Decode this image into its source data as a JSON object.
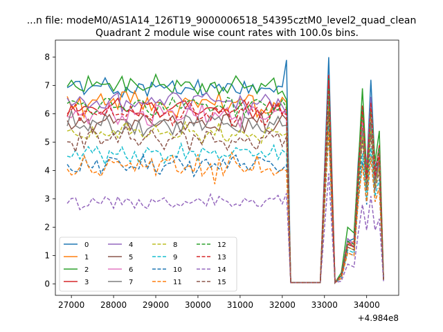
{
  "chart_data": {
    "type": "line",
    "suptitle": "...n file: modeM0/AS1A14_126T19_9000006518_54395cztM0_level2_quad_clean",
    "title": "Quadrant 2 module wise count rates with 100.0s bins.",
    "xlabel": "",
    "ylabel": "",
    "x_offset_label": "+4.984e8",
    "xlim": [
      26620,
      34760
    ],
    "ylim": [
      -0.4,
      8.6
    ],
    "xticks": [
      27000,
      28000,
      29000,
      30000,
      31000,
      32000,
      33000,
      34000
    ],
    "yticks": [
      0,
      1,
      2,
      3,
      4,
      5,
      6,
      7,
      8
    ],
    "legend_position": "lower-left",
    "legend_columns": 4,
    "break_x": [
      32100,
      32200,
      32900,
      33100,
      33250,
      33400,
      33550,
      33700,
      33800,
      33900,
      34000,
      34100,
      34200,
      34300,
      34400
    ],
    "series": [
      {
        "name": "0",
        "color": "#1f77b4",
        "dash": "solid",
        "base": 6.9,
        "amp": 0.3,
        "tail": [
          7.9,
          0.05,
          0.05,
          8.0,
          0.05,
          0.3,
          1.5,
          1.6,
          4.3,
          6.2,
          4.0,
          7.2,
          4.1,
          4.7,
          0.15
        ]
      },
      {
        "name": "1",
        "color": "#ff7f0e",
        "dash": "solid",
        "base": 6.4,
        "amp": 0.4,
        "tail": [
          6.4,
          0.05,
          0.05,
          7.2,
          0.05,
          0.3,
          1.4,
          1.5,
          3.5,
          6.0,
          3.6,
          6.1,
          3.8,
          4.6,
          0.15
        ]
      },
      {
        "name": "2",
        "color": "#2ca02c",
        "dash": "solid",
        "base": 7.0,
        "amp": 0.3,
        "tail": [
          6.5,
          0.05,
          0.05,
          7.3,
          0.05,
          0.4,
          2.0,
          1.8,
          4.1,
          6.9,
          3.9,
          6.5,
          4.3,
          5.4,
          0.15
        ]
      },
      {
        "name": "3",
        "color": "#d62728",
        "dash": "solid",
        "base": 6.2,
        "amp": 0.3,
        "tail": [
          6.2,
          0.05,
          0.05,
          7.1,
          0.05,
          0.3,
          1.5,
          1.3,
          4.0,
          6.0,
          3.7,
          6.3,
          3.9,
          4.9,
          0.15
        ]
      },
      {
        "name": "4",
        "color": "#9467bd",
        "dash": "solid",
        "base": 6.4,
        "amp": 0.35,
        "tail": [
          6.0,
          0.05,
          0.05,
          6.8,
          0.05,
          0.3,
          1.6,
          1.4,
          3.9,
          5.8,
          4.0,
          6.6,
          3.7,
          4.8,
          0.15
        ]
      },
      {
        "name": "5",
        "color": "#8c564b",
        "dash": "solid",
        "base": 5.7,
        "amp": 0.3,
        "tail": [
          5.8,
          0.05,
          0.05,
          6.6,
          0.05,
          0.3,
          1.4,
          1.3,
          3.6,
          5.5,
          3.4,
          5.7,
          3.6,
          4.4,
          0.15
        ]
      },
      {
        "name": "6",
        "color": "#e377c2",
        "dash": "solid",
        "base": 6.0,
        "amp": 0.35,
        "tail": [
          6.0,
          0.05,
          0.05,
          6.9,
          0.05,
          0.3,
          1.5,
          1.4,
          3.8,
          5.9,
          3.8,
          6.2,
          3.9,
          4.7,
          0.15
        ]
      },
      {
        "name": "7",
        "color": "#7f7f7f",
        "dash": "solid",
        "base": 5.6,
        "amp": 0.35,
        "tail": [
          5.6,
          0.05,
          0.05,
          6.5,
          0.05,
          0.3,
          1.4,
          1.3,
          3.5,
          5.4,
          3.4,
          5.6,
          3.5,
          4.3,
          0.15
        ]
      },
      {
        "name": "8",
        "color": "#bcbd22",
        "dash": "dashed",
        "base": 5.3,
        "amp": 0.3,
        "tail": [
          5.3,
          0.05,
          0.05,
          6.2,
          0.05,
          0.3,
          1.3,
          1.2,
          3.4,
          5.2,
          3.3,
          5.4,
          3.4,
          4.1,
          0.15
        ]
      },
      {
        "name": "9",
        "color": "#17becf",
        "dash": "dashed",
        "base": 4.6,
        "amp": 0.25,
        "tail": [
          4.6,
          0.05,
          0.05,
          5.6,
          0.05,
          0.2,
          1.2,
          1.1,
          3.1,
          4.6,
          3.0,
          4.8,
          3.1,
          3.7,
          0.15
        ]
      },
      {
        "name": "10",
        "color": "#1f77b4",
        "dash": "dashed",
        "base": 4.2,
        "amp": 0.3,
        "tail": [
          4.2,
          0.05,
          0.05,
          5.3,
          0.05,
          0.2,
          1.1,
          1.0,
          2.9,
          4.3,
          2.8,
          4.5,
          2.9,
          3.4,
          0.15
        ]
      },
      {
        "name": "11",
        "color": "#ff7f0e",
        "dash": "dashed",
        "base": 4.1,
        "amp": 0.4,
        "tail": [
          4.0,
          0.05,
          0.05,
          5.4,
          0.05,
          0.2,
          1.1,
          1.0,
          2.9,
          4.2,
          2.9,
          4.5,
          2.9,
          3.4,
          0.15
        ]
      },
      {
        "name": "12",
        "color": "#2ca02c",
        "dash": "dashed",
        "base": 6.3,
        "amp": 0.3,
        "tail": [
          6.2,
          0.05,
          0.05,
          7.0,
          0.05,
          0.3,
          1.5,
          1.4,
          3.9,
          6.1,
          3.8,
          6.2,
          3.9,
          4.8,
          0.15
        ]
      },
      {
        "name": "13",
        "color": "#d62728",
        "dash": "dashed",
        "base": 6.0,
        "amp": 0.3,
        "tail": [
          6.0,
          0.05,
          0.05,
          7.4,
          0.05,
          0.3,
          1.4,
          1.3,
          3.8,
          6.3,
          3.7,
          6.4,
          3.8,
          4.6,
          0.15
        ]
      },
      {
        "name": "14",
        "color": "#9467bd",
        "dash": "dashed",
        "base": 2.9,
        "amp": 0.2,
        "tail": [
          3.2,
          0.05,
          0.05,
          3.9,
          0.05,
          0.1,
          0.7,
          0.6,
          1.8,
          2.8,
          1.9,
          3.1,
          1.9,
          2.3,
          0.1
        ]
      },
      {
        "name": "15",
        "color": "#8c564b",
        "dash": "dashed",
        "base": 5.1,
        "amp": 0.35,
        "tail": [
          5.2,
          0.05,
          0.05,
          6.1,
          0.05,
          0.3,
          1.3,
          1.2,
          3.3,
          5.1,
          3.3,
          5.3,
          3.3,
          4.0,
          0.15
        ]
      }
    ]
  }
}
